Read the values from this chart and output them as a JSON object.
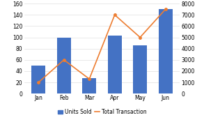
{
  "categories": [
    "Jan",
    "Feb",
    "Mar",
    "Apr",
    "May",
    "Jun"
  ],
  "units_sold": [
    50,
    100,
    28,
    103,
    86,
    150
  ],
  "total_transaction": [
    1000,
    3000,
    1300,
    7000,
    5000,
    7500
  ],
  "bar_color": "#4472C4",
  "line_color": "#ED7D31",
  "left_ylim": [
    0,
    160
  ],
  "right_ylim": [
    0,
    8000
  ],
  "left_yticks": [
    0,
    20,
    40,
    60,
    80,
    100,
    120,
    140,
    160
  ],
  "right_yticks": [
    0,
    1000,
    2000,
    3000,
    4000,
    5000,
    6000,
    7000,
    8000
  ],
  "legend_labels": [
    "Units Sold",
    "Total Transaction"
  ],
  "bar_width": 0.55,
  "background_color": "#ffffff",
  "grid_color": "#e0e0e0",
  "tick_fontsize": 5.5,
  "legend_fontsize": 5.5
}
